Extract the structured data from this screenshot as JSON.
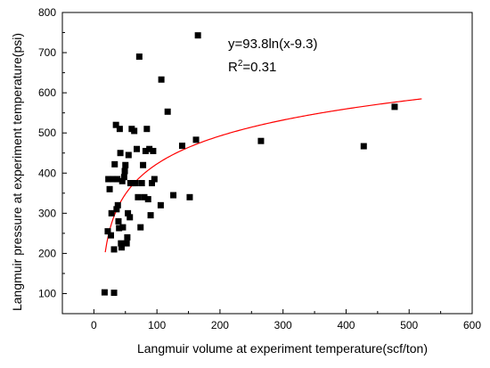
{
  "chart_data": {
    "type": "scatter",
    "xlabel": "Langmuir volume at experiment temperature(scf/ton)",
    "ylabel": "Langmuir pressure at experiment temperature(psi)",
    "xlim": [
      -50,
      600
    ],
    "ylim": [
      50,
      800
    ],
    "x_ticks": [
      0,
      100,
      200,
      300,
      400,
      500,
      600
    ],
    "y_ticks": [
      100,
      200,
      300,
      400,
      500,
      600,
      700,
      800
    ],
    "grid": false,
    "marker": "square",
    "marker_color": "#000000",
    "fit_color": "#ff0000",
    "fit": {
      "a": 93.8,
      "c": 9.3,
      "x_range": [
        18,
        520
      ]
    },
    "annotations": {
      "equation": "y=93.8ln(x-9.3)",
      "r2_prefix": "R",
      "r2_sup": "2",
      "r2_value": "=0.31"
    },
    "points": [
      [
        17,
        103
      ],
      [
        32,
        102
      ],
      [
        22,
        255
      ],
      [
        23,
        385
      ],
      [
        25,
        360
      ],
      [
        27,
        245
      ],
      [
        28,
        300
      ],
      [
        30,
        385
      ],
      [
        32,
        210
      ],
      [
        33,
        422
      ],
      [
        35,
        520
      ],
      [
        36,
        310
      ],
      [
        37,
        385
      ],
      [
        38,
        320
      ],
      [
        39,
        280
      ],
      [
        40,
        263
      ],
      [
        41,
        510
      ],
      [
        42,
        450
      ],
      [
        43,
        225
      ],
      [
        44,
        215
      ],
      [
        45,
        380
      ],
      [
        46,
        265
      ],
      [
        48,
        390
      ],
      [
        49,
        405
      ],
      [
        50,
        420
      ],
      [
        52,
        225
      ],
      [
        53,
        240
      ],
      [
        54,
        300
      ],
      [
        55,
        445
      ],
      [
        57,
        290
      ],
      [
        58,
        375
      ],
      [
        60,
        510
      ],
      [
        62,
        375
      ],
      [
        64,
        505
      ],
      [
        66,
        375
      ],
      [
        68,
        460
      ],
      [
        70,
        340
      ],
      [
        72,
        690
      ],
      [
        74,
        265
      ],
      [
        76,
        375
      ],
      [
        78,
        420
      ],
      [
        80,
        340
      ],
      [
        82,
        455
      ],
      [
        84,
        510
      ],
      [
        86,
        335
      ],
      [
        88,
        460
      ],
      [
        90,
        295
      ],
      [
        92,
        375
      ],
      [
        94,
        455
      ],
      [
        96,
        385
      ],
      [
        106,
        320
      ],
      [
        107,
        633
      ],
      [
        117,
        553
      ],
      [
        126,
        345
      ],
      [
        140,
        468
      ],
      [
        152,
        340
      ],
      [
        162,
        483
      ],
      [
        165,
        743
      ],
      [
        265,
        480
      ],
      [
        428,
        467
      ],
      [
        477,
        565
      ]
    ]
  }
}
